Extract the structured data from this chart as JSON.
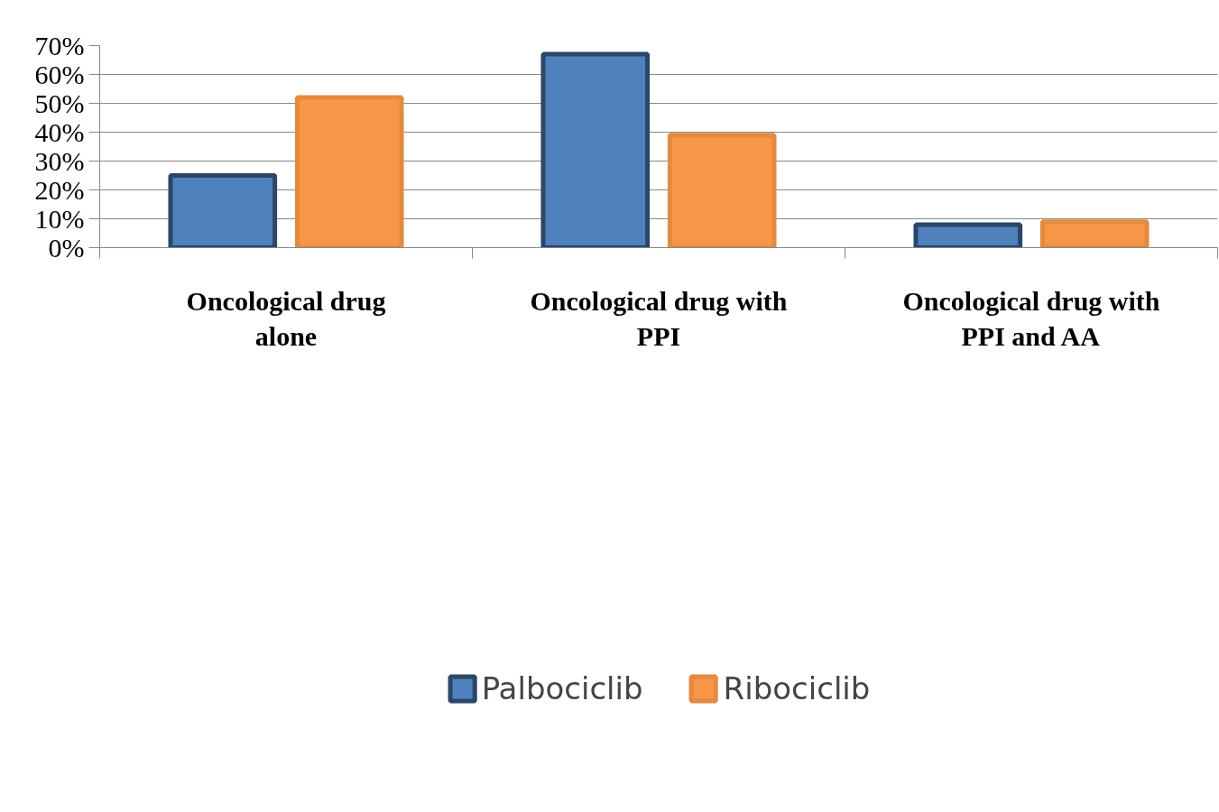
{
  "chart_data": {
    "type": "bar",
    "categories": [
      "Oncological drug alone",
      "Oncological drug with PPI",
      "Oncological drug with PPI and AA"
    ],
    "series": [
      {
        "name": "Palbociclib",
        "color": "#4f81bd",
        "values": [
          25,
          67,
          8
        ]
      },
      {
        "name": "Ribociclib",
        "color": "#f79646",
        "values": [
          52,
          39,
          9
        ]
      }
    ],
    "ylim": [
      0,
      70
    ],
    "yticks": [
      {
        "value": 0,
        "label": "0%"
      },
      {
        "value": 10,
        "label": "10%"
      },
      {
        "value": 20,
        "label": "20%"
      },
      {
        "value": 30,
        "label": "30%"
      },
      {
        "value": 40,
        "label": "40%"
      },
      {
        "value": 50,
        "label": "50%"
      },
      {
        "value": 60,
        "label": "60%"
      },
      {
        "value": 70,
        "label": "70%"
      }
    ],
    "grid": "y",
    "legend": "bottom"
  }
}
